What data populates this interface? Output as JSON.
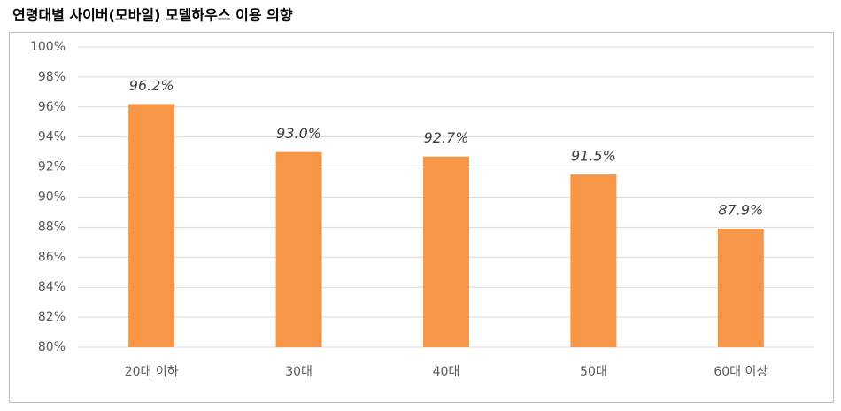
{
  "chart_data": {
    "type": "bar",
    "title": "연령대별 사이버(모바일) 모델하우스 이용 의향",
    "categories": [
      "20대 이하",
      "30대",
      "40대",
      "50대",
      "60대 이상"
    ],
    "values": [
      96.2,
      93.0,
      92.7,
      91.5,
      87.9
    ],
    "value_labels": [
      "96.2%",
      "93.0%",
      "92.7%",
      "91.5%",
      "87.9%"
    ],
    "color": "#f79646",
    "ylim": [
      80,
      100
    ],
    "yticks": [
      {
        "value": 80,
        "label": "80%"
      },
      {
        "value": 82,
        "label": "82%"
      },
      {
        "value": 84,
        "label": "84%"
      },
      {
        "value": 86,
        "label": "86%"
      },
      {
        "value": 88,
        "label": "88%"
      },
      {
        "value": 90,
        "label": "90%"
      },
      {
        "value": 92,
        "label": "92%"
      },
      {
        "value": 94,
        "label": "94%"
      },
      {
        "value": 96,
        "label": "96%"
      },
      {
        "value": 98,
        "label": "98%"
      },
      {
        "value": 100,
        "label": "100%"
      }
    ],
    "grid": true
  }
}
